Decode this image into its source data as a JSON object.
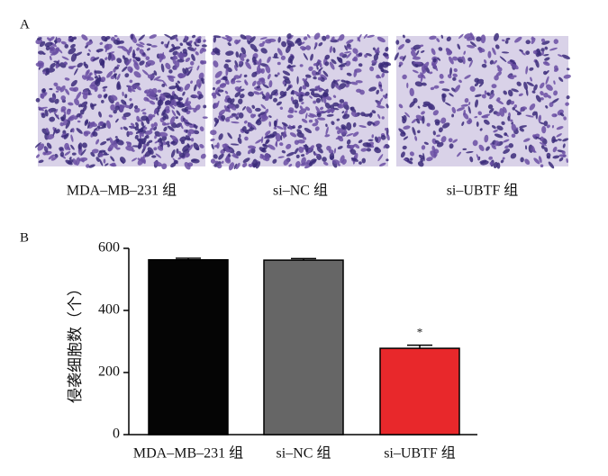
{
  "panel_a": {
    "label": "A",
    "captions": [
      "MDA–MB–231 组",
      "si–NC 组",
      "si–UBTF 组"
    ]
  },
  "chart_data": {
    "type": "bar",
    "panel_label": "B",
    "ylabel": "侵袭细胞数（个）",
    "categories": [
      "MDA–MB–231 组",
      "si–NC 组",
      "si–UBTF 组"
    ],
    "values": [
      563,
      562,
      278
    ],
    "errors": [
      5,
      5,
      10
    ],
    "colors": [
      "#050505",
      "#666666",
      "#e8282b"
    ],
    "annotations": [
      null,
      null,
      "*"
    ],
    "ylim": [
      0,
      600
    ],
    "yticks": [
      0,
      200,
      400,
      600
    ]
  }
}
